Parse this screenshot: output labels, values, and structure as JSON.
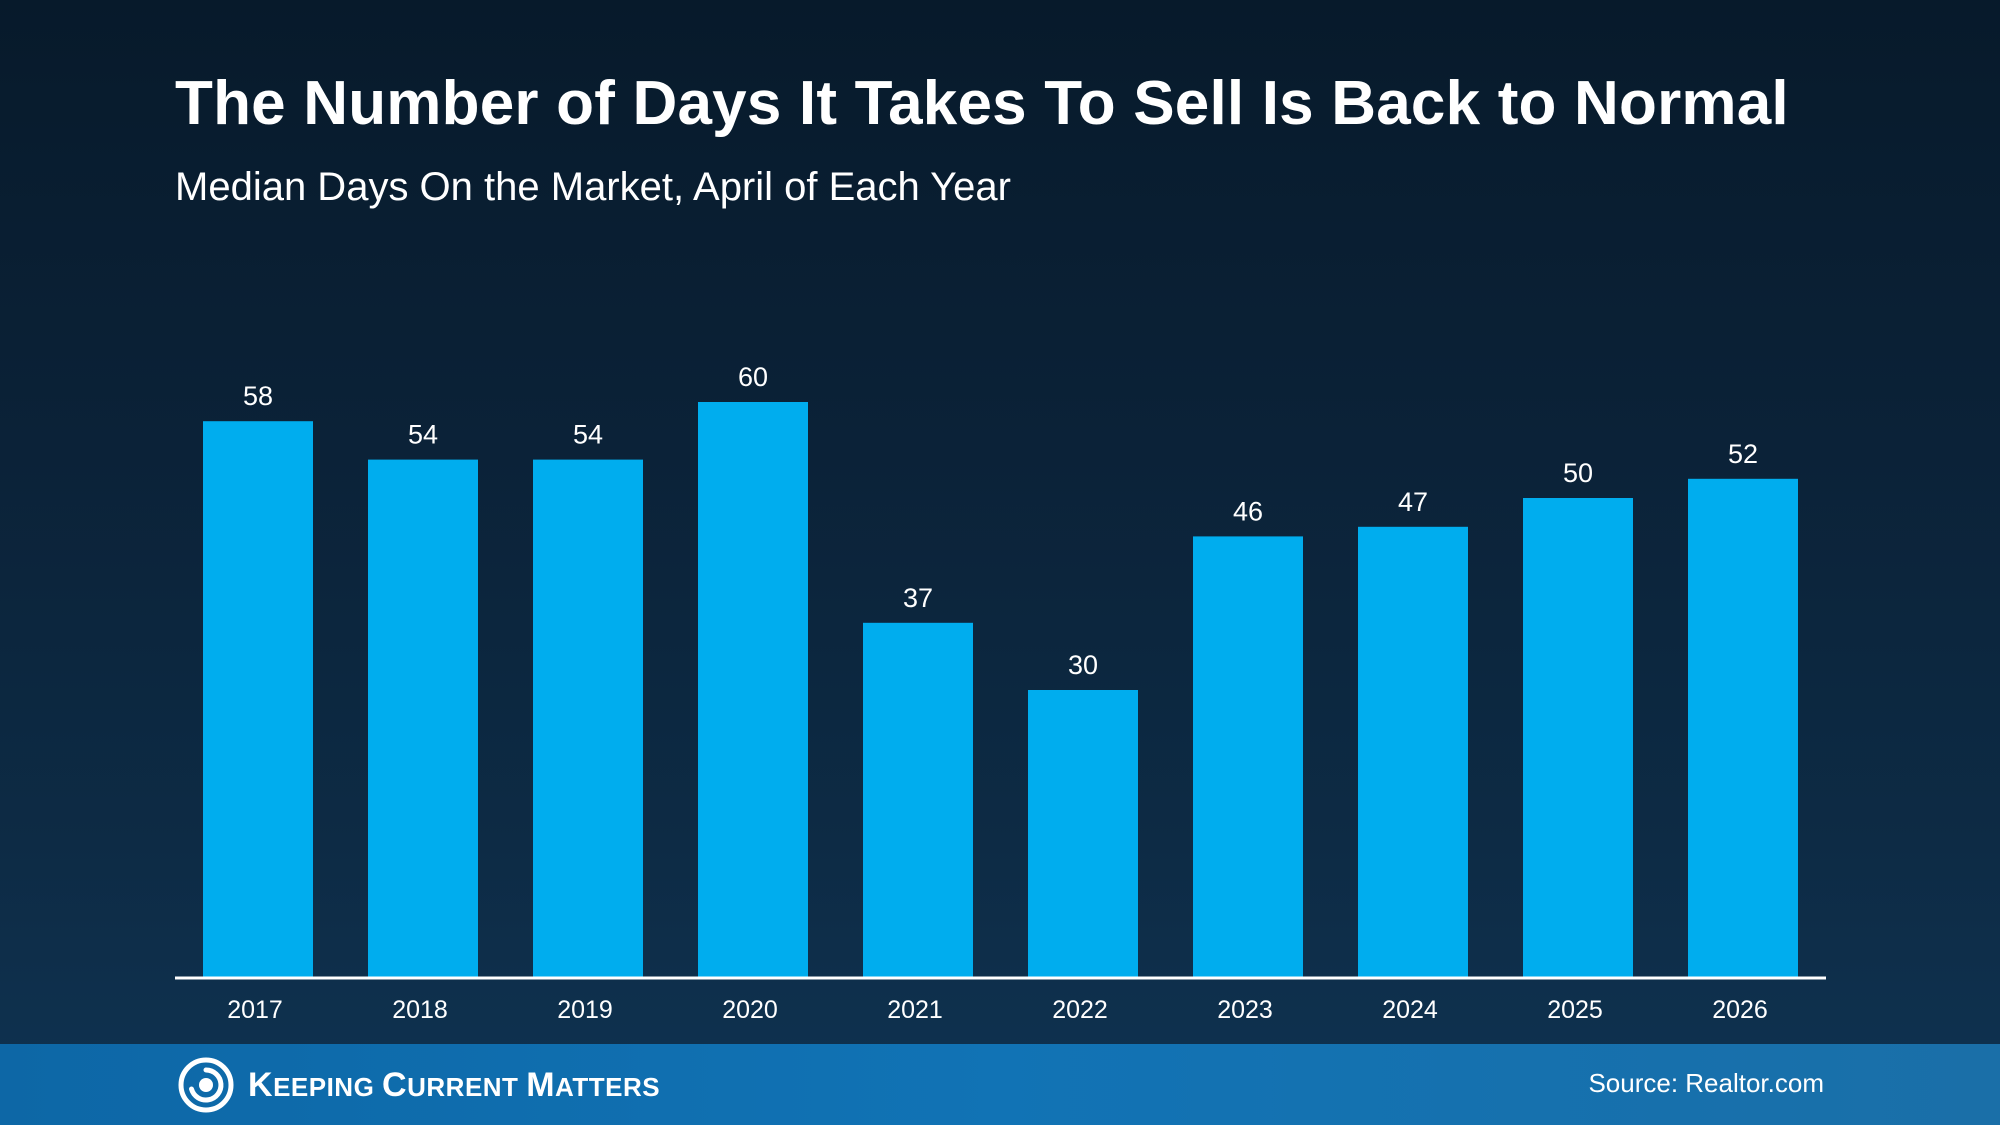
{
  "header": {
    "title": "The Number of Days It Takes To Sell Is Back to Normal",
    "subtitle": "Median Days On the Market, April of Each Year"
  },
  "chart_data": {
    "type": "bar",
    "categories": [
      "2017",
      "2018",
      "2019",
      "2020",
      "2021",
      "2022",
      "2023",
      "2024",
      "2025",
      "2026"
    ],
    "values": [
      58,
      54,
      54,
      60,
      37,
      30,
      46,
      47,
      50,
      52
    ],
    "title": "The Number of Days It Takes To Sell Is Back to Normal",
    "subtitle": "Median Days On the Market, April of Each Year",
    "xlabel": "",
    "ylabel": "",
    "ylim": [
      0,
      60
    ],
    "grid": false,
    "legend": "none",
    "bar_color": "#00adee",
    "label_color": "#ffffff"
  },
  "footer": {
    "logo_words": [
      "Keeping",
      "Current",
      "Matters"
    ],
    "logo_icon": "swirl-logo-icon",
    "source": "Source: Realtor.com",
    "bg_color": "#1173b5"
  }
}
